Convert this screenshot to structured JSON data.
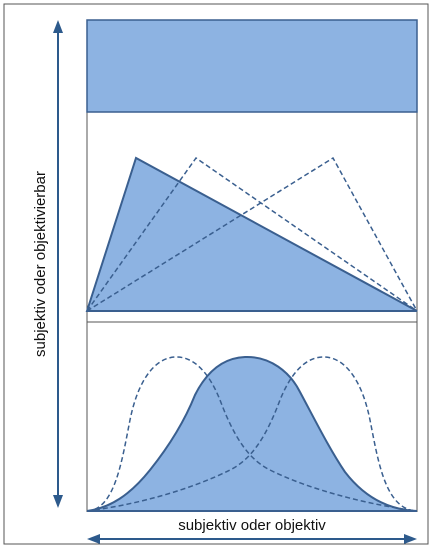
{
  "labels": {
    "y_axis": "subjektiv oder objektivierbar",
    "x_axis": "subjektiv oder objektiv"
  },
  "colors": {
    "fill": "#8db3e2",
    "stroke": "#3a5f8f",
    "dashed": "#3a5f8f",
    "axis": "#2d5a8c",
    "frame": "#555555"
  }
}
